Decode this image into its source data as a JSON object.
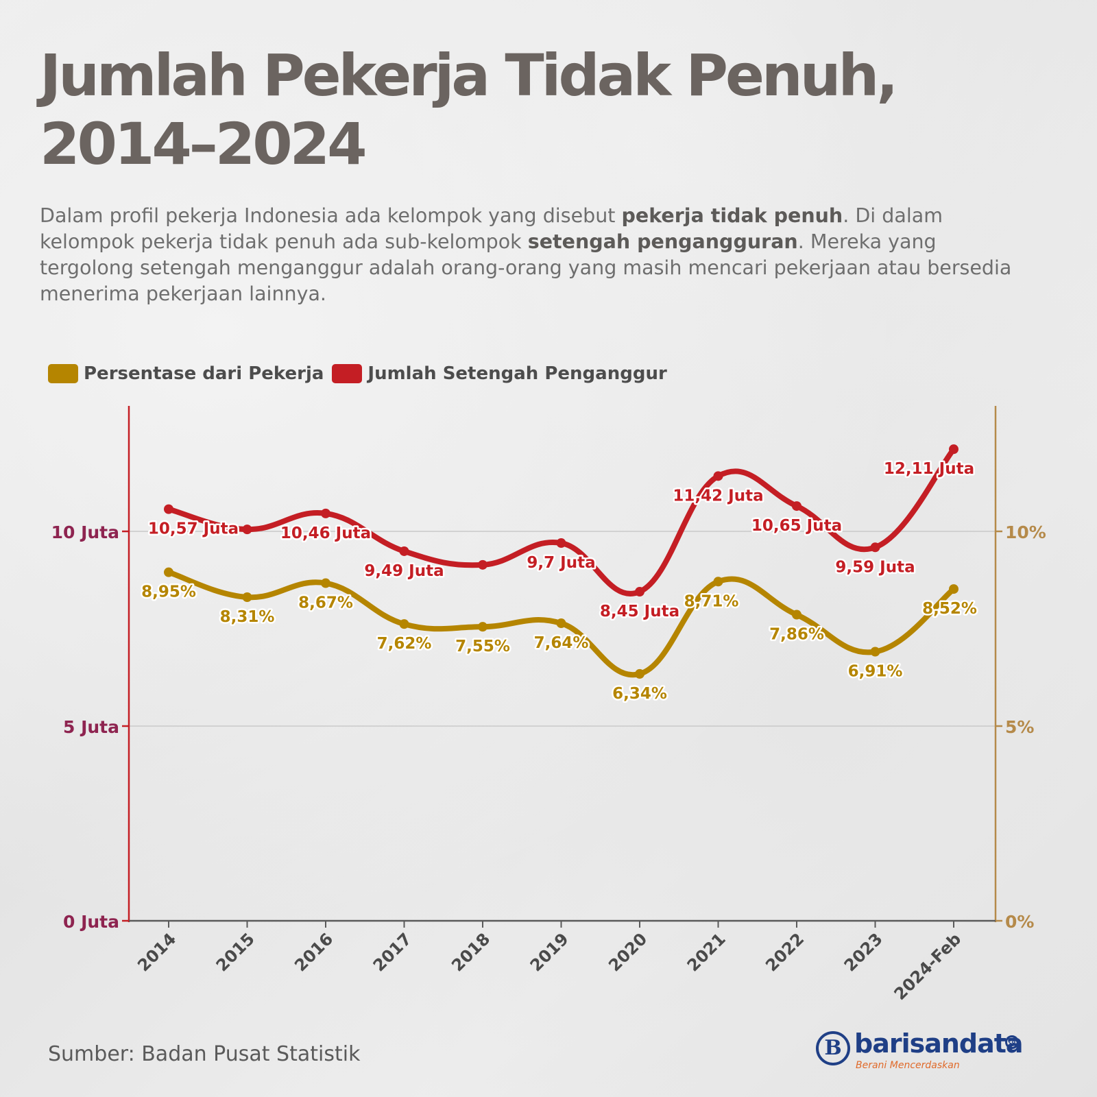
{
  "header": {
    "title_line1": "Jumlah Pekerja Tidak Penuh,",
    "title_line2": "2014–2024"
  },
  "description": {
    "part1": "Dalam profil pekerja Indonesia ada kelompok yang disebut ",
    "bold1": "pekerja tidak penuh",
    "part2": ". Di dalam kelompok pekerja tidak penuh ada sub-kelompok ",
    "bold2": "setengah pengangguran",
    "part3": ". Mereka yang tergolong setengah menganggur adalah orang-orang yang masih mencari pekerjaan atau bersedia menerima pekerjaan lainnya."
  },
  "legend": {
    "percent_label": "Persentase dari Pekerja",
    "count_label": "Jumlah Setengah Penganggur"
  },
  "footer": {
    "source": "Sumber: Badan Pusat Statistik",
    "brand_name": "barisandata",
    "brand_suffix": "co",
    "brand_tagline": "Berani Mencerdaskan",
    "brand_mark": "B"
  },
  "colors": {
    "count": "#c41e24",
    "percent": "#b58500",
    "left_axis_label": "#8e2450",
    "right_axis_label": "#b58a4a",
    "grid": "#c9c9c9"
  },
  "chart_data": {
    "type": "line",
    "categories": [
      "2014",
      "2015",
      "2016",
      "2017",
      "2018",
      "2019",
      "2020",
      "2021",
      "2022",
      "2023",
      "2024-Feb"
    ],
    "series": [
      {
        "name": "Jumlah Setengah Penganggur",
        "axis": "left",
        "unit": "Juta",
        "values": [
          10.57,
          10.05,
          10.46,
          9.49,
          9.14,
          9.7,
          8.45,
          11.42,
          10.65,
          9.59,
          12.11
        ],
        "labels": [
          "10,57 Juta",
          "",
          "10,46 Juta",
          "9,49 Juta",
          "",
          "9,7 Juta",
          "8,45 Juta",
          "11,42 Juta",
          "10,65 Juta",
          "9,59 Juta",
          "12,11 Juta"
        ]
      },
      {
        "name": "Persentase dari Pekerja",
        "axis": "right",
        "unit": "%",
        "values": [
          8.95,
          8.31,
          8.67,
          7.62,
          7.55,
          7.64,
          6.34,
          8.71,
          7.86,
          6.91,
          8.52
        ],
        "labels": [
          "8,95%",
          "8,31%",
          "8,67%",
          "7,62%",
          "7,55%",
          "7,64%",
          "6,34%",
          "8,71%",
          "7,86%",
          "6,91%",
          "8,52%"
        ]
      }
    ],
    "left_axis": {
      "ylim": [
        0,
        13
      ],
      "ticks": [
        0,
        5,
        10
      ],
      "tick_labels": [
        "0 Juta",
        "5 Juta",
        "10 Juta"
      ]
    },
    "right_axis": {
      "ylim": [
        0,
        13
      ],
      "ticks": [
        0,
        5,
        10
      ],
      "tick_labels": [
        "0%",
        "5%",
        "10%"
      ]
    },
    "grid": true,
    "legend_position": "top-left"
  }
}
